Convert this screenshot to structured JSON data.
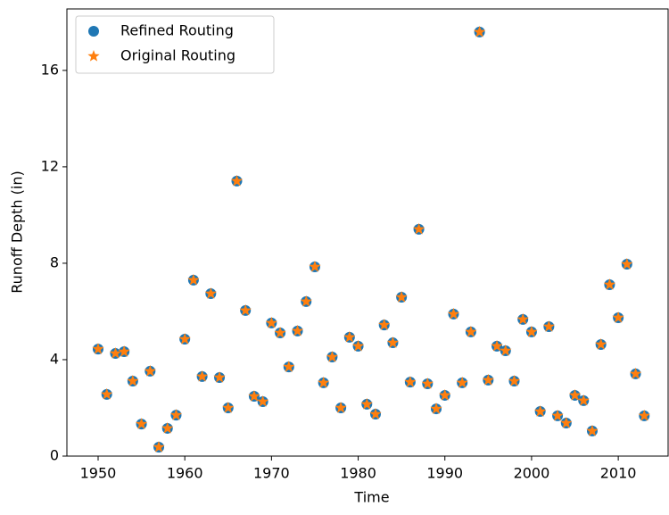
{
  "chart_data": {
    "type": "scatter",
    "xlabel": "Time",
    "ylabel": "Runoff Depth (in)",
    "x": [
      1950,
      1951,
      1952,
      1953,
      1954,
      1955,
      1956,
      1957,
      1958,
      1959,
      1960,
      1961,
      1962,
      1963,
      1964,
      1965,
      1966,
      1967,
      1968,
      1969,
      1970,
      1971,
      1972,
      1973,
      1974,
      1975,
      1976,
      1977,
      1978,
      1979,
      1980,
      1981,
      1982,
      1983,
      1984,
      1985,
      1986,
      1987,
      1988,
      1989,
      1990,
      1991,
      1992,
      1993,
      1994,
      1995,
      1996,
      1997,
      1998,
      1999,
      2000,
      2001,
      2002,
      2003,
      2004,
      2005,
      2006,
      2007,
      2008,
      2009,
      2010,
      2011,
      2012,
      2013
    ],
    "series": [
      {
        "name": "Refined Routing",
        "color": "#1f77b4",
        "marker": "circle",
        "values": [
          4.44,
          2.56,
          4.26,
          4.33,
          3.11,
          1.33,
          3.52,
          0.37,
          1.15,
          1.7,
          4.85,
          7.3,
          3.3,
          6.74,
          3.26,
          2.0,
          11.41,
          6.04,
          2.48,
          2.26,
          5.52,
          5.11,
          3.7,
          5.19,
          6.41,
          7.85,
          3.04,
          4.11,
          2.0,
          4.93,
          4.56,
          2.15,
          1.74,
          5.44,
          4.7,
          6.59,
          3.07,
          9.41,
          3.0,
          1.96,
          2.52,
          5.89,
          3.04,
          5.15,
          17.59,
          3.15,
          4.56,
          4.37,
          3.11,
          5.67,
          5.15,
          1.85,
          5.37,
          1.67,
          1.37,
          2.52,
          2.3,
          1.04,
          4.63,
          7.11,
          5.74,
          7.96,
          3.41,
          1.67
        ]
      },
      {
        "name": "Original Routing",
        "color": "#ff7f0e",
        "marker": "star",
        "values": [
          4.44,
          2.56,
          4.26,
          4.33,
          3.11,
          1.33,
          3.52,
          0.37,
          1.15,
          1.7,
          4.85,
          7.3,
          3.3,
          6.74,
          3.26,
          2.0,
          11.41,
          6.04,
          2.48,
          2.26,
          5.52,
          5.11,
          3.7,
          5.19,
          6.41,
          7.85,
          3.04,
          4.11,
          2.0,
          4.93,
          4.56,
          2.15,
          1.74,
          5.44,
          4.7,
          6.59,
          3.07,
          9.41,
          3.0,
          1.96,
          2.52,
          5.89,
          3.04,
          5.15,
          17.59,
          3.15,
          4.56,
          4.37,
          3.11,
          5.67,
          5.15,
          1.85,
          5.37,
          1.67,
          1.37,
          2.52,
          2.3,
          1.04,
          4.63,
          7.11,
          5.74,
          7.96,
          3.41,
          1.67
        ]
      }
    ],
    "xlim": [
      1946.4,
      2015.75
    ],
    "xticks": [
      1950,
      1960,
      1970,
      1980,
      1990,
      2000,
      2010
    ],
    "ylim": [
      0,
      18.55
    ],
    "yticks": [
      0,
      4,
      8,
      12,
      16
    ],
    "legend": "upper left"
  }
}
